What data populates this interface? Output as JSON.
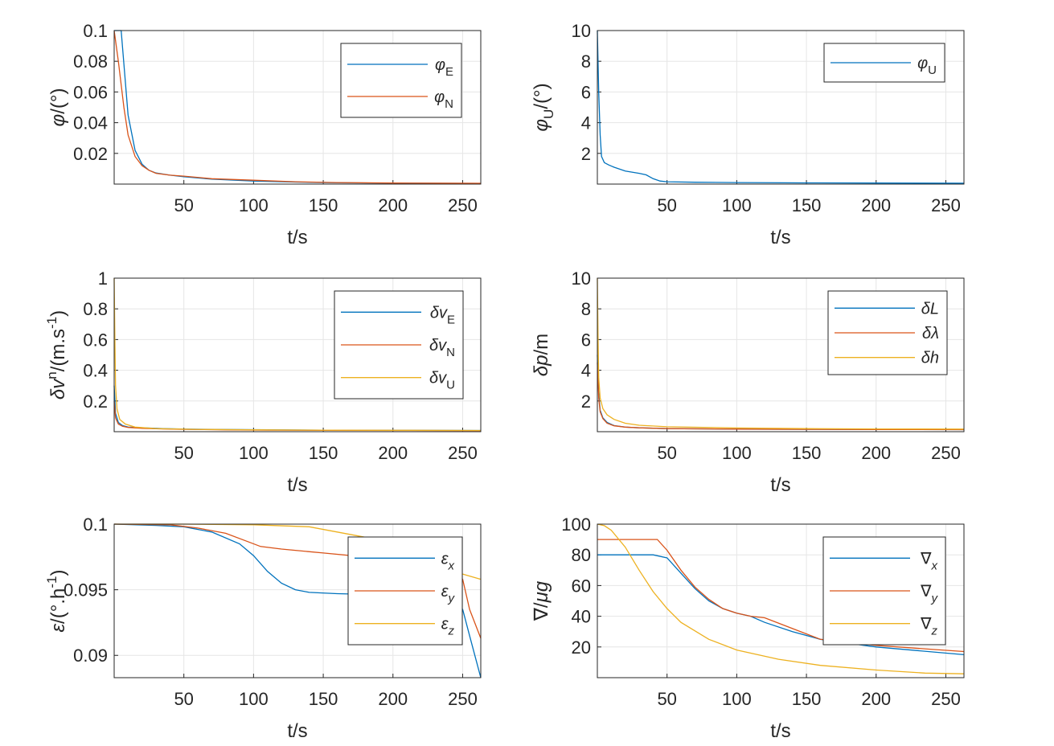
{
  "colors": {
    "blue": "#0072BD",
    "orange": "#D95319",
    "yellow": "#EDB120",
    "axis": "#262626",
    "grid": "#e6e6e6"
  },
  "chart_data": [
    {
      "id": "phiEN",
      "type": "line",
      "ylabel": "φ/(°)",
      "xlabel": "t/s",
      "xlim": [
        0,
        263
      ],
      "ylim": [
        0,
        0.1
      ],
      "xticks": [
        "50",
        "100",
        "150",
        "200",
        "250"
      ],
      "yticks": [
        "0.02",
        "0.04",
        "0.06",
        "0.08",
        "0.1"
      ],
      "legend_position": "top-right",
      "series": [
        {
          "name": "φE",
          "sym": "φ",
          "sub": "E",
          "color": "#0072BD",
          "x": [
            0,
            5,
            10,
            15,
            20,
            25,
            30,
            40,
            50,
            70,
            100,
            130,
            160,
            200,
            263
          ],
          "y": [
            0.1,
            0.1,
            0.045,
            0.022,
            0.013,
            0.009,
            0.0072,
            0.0058,
            0.0048,
            0.0032,
            0.002,
            0.0013,
            0.0009,
            0.0006,
            0.0004
          ]
        },
        {
          "name": "φN",
          "sym": "φ",
          "sub": "N",
          "color": "#D95319",
          "x": [
            0,
            3,
            7,
            10,
            15,
            20,
            25,
            30,
            40,
            50,
            70,
            100,
            130,
            160,
            200,
            263
          ],
          "y": [
            0.1,
            0.08,
            0.05,
            0.032,
            0.018,
            0.012,
            0.009,
            0.007,
            0.0058,
            0.0052,
            0.0035,
            0.0025,
            0.0015,
            0.001,
            0.0007,
            0.0005
          ]
        }
      ]
    },
    {
      "id": "phiU",
      "type": "line",
      "ylabel": "φU/(°)",
      "xlabel": "t/s",
      "xlim": [
        0,
        263
      ],
      "ylim": [
        0,
        10
      ],
      "xticks": [
        "50",
        "100",
        "150",
        "200",
        "250"
      ],
      "yticks": [
        "2",
        "4",
        "6",
        "8",
        "10"
      ],
      "legend_position": "top-right",
      "series": [
        {
          "name": "φU",
          "sym": "φ",
          "sub": "U",
          "color": "#0072BD",
          "x": [
            0,
            1,
            2,
            3,
            5,
            8,
            12,
            20,
            30,
            35,
            40,
            45,
            50,
            70,
            100,
            150,
            200,
            263
          ],
          "y": [
            10,
            6,
            3.2,
            1.8,
            1.4,
            1.25,
            1.1,
            0.85,
            0.7,
            0.6,
            0.35,
            0.2,
            0.15,
            0.12,
            0.1,
            0.08,
            0.07,
            0.06
          ]
        }
      ]
    },
    {
      "id": "dv",
      "type": "line",
      "ylabel": "δvn/(m.s-1)",
      "xlabel": "t/s",
      "xlim": [
        0,
        263
      ],
      "ylim": [
        0,
        1
      ],
      "xticks": [
        "50",
        "100",
        "150",
        "200",
        "250"
      ],
      "yticks": [
        "0.2",
        "0.4",
        "0.6",
        "0.8",
        "1"
      ],
      "legend_position": "top-right",
      "series": [
        {
          "name": "δvE",
          "sym": "δv",
          "sub": "E",
          "color": "#0072BD",
          "x": [
            0,
            1,
            3,
            6,
            10,
            20,
            35,
            50,
            80,
            110,
            150,
            200,
            263
          ],
          "y": [
            0.3,
            0.12,
            0.06,
            0.04,
            0.03,
            0.025,
            0.02,
            0.017,
            0.014,
            0.012,
            0.01,
            0.009,
            0.008
          ]
        },
        {
          "name": "δvN",
          "sym": "δv",
          "sub": "N",
          "color": "#D95319",
          "x": [
            0,
            1,
            3,
            6,
            10,
            20,
            35,
            50,
            80,
            110,
            150,
            200,
            263
          ],
          "y": [
            0.2,
            0.09,
            0.05,
            0.035,
            0.028,
            0.022,
            0.018,
            0.015,
            0.012,
            0.01,
            0.009,
            0.008,
            0.007
          ]
        },
        {
          "name": "δvU",
          "sym": "δv",
          "sub": "U",
          "color": "#EDB120",
          "x": [
            0,
            0.5,
            1,
            2,
            4,
            8,
            15,
            30,
            60,
            100,
            150,
            200,
            263
          ],
          "y": [
            1.0,
            0.6,
            0.3,
            0.15,
            0.08,
            0.05,
            0.03,
            0.02,
            0.015,
            0.012,
            0.01,
            0.009,
            0.008
          ]
        }
      ]
    },
    {
      "id": "dp",
      "type": "line",
      "ylabel": "δp/m",
      "xlabel": "t/s",
      "xlim": [
        0,
        263
      ],
      "ylim": [
        0,
        10
      ],
      "xticks": [
        "50",
        "100",
        "150",
        "200",
        "250"
      ],
      "yticks": [
        "2",
        "4",
        "6",
        "8",
        "10"
      ],
      "legend_position": "top-right",
      "series": [
        {
          "name": "δL",
          "sym": "δL",
          "sub": "",
          "color": "#0072BD",
          "x": [
            0,
            1,
            2,
            4,
            7,
            12,
            20,
            30,
            50,
            100,
            150,
            200,
            263
          ],
          "y": [
            5,
            2.5,
            1.4,
            0.9,
            0.6,
            0.4,
            0.3,
            0.25,
            0.2,
            0.17,
            0.15,
            0.14,
            0.13
          ]
        },
        {
          "name": "δλ",
          "sym": "δλ",
          "sub": "",
          "color": "#D95319",
          "x": [
            0,
            1,
            2,
            4,
            7,
            12,
            20,
            30,
            50,
            100,
            150,
            200,
            263
          ],
          "y": [
            4.5,
            2.2,
            1.3,
            0.85,
            0.55,
            0.38,
            0.3,
            0.25,
            0.2,
            0.17,
            0.15,
            0.14,
            0.13
          ]
        },
        {
          "name": "δh",
          "sym": "δh",
          "sub": "",
          "color": "#EDB120",
          "x": [
            0,
            0.5,
            1,
            2,
            4,
            7,
            12,
            20,
            30,
            50,
            100,
            150,
            200,
            263
          ],
          "y": [
            10,
            6,
            3.5,
            2.2,
            1.5,
            1.1,
            0.8,
            0.55,
            0.42,
            0.32,
            0.24,
            0.2,
            0.18,
            0.17
          ]
        }
      ]
    },
    {
      "id": "eps",
      "type": "line",
      "ylabel": "ε/(°.h-1)",
      "xlabel": "t/s",
      "xlim": [
        0,
        263
      ],
      "ylim": [
        0.0883,
        0.1
      ],
      "xticks": [
        "50",
        "100",
        "150",
        "200",
        "250"
      ],
      "yticks": [
        "0.09",
        "0.095",
        "0.1"
      ],
      "ytick_values": [
        0.09,
        0.095,
        0.1
      ],
      "legend_position": "top-right",
      "series": [
        {
          "name": "εx",
          "sym": "ε",
          "sub": "x",
          "color": "#0072BD",
          "x": [
            0,
            30,
            50,
            70,
            90,
            100,
            110,
            120,
            130,
            140,
            160,
            200,
            240,
            250,
            255,
            260,
            263
          ],
          "y": [
            0.1,
            0.0999,
            0.0998,
            0.0994,
            0.0985,
            0.0976,
            0.0964,
            0.0955,
            0.095,
            0.0948,
            0.0947,
            0.0946,
            0.0945,
            0.0935,
            0.0915,
            0.0895,
            0.0883
          ]
        },
        {
          "name": "εy",
          "sym": "ε",
          "sub": "y",
          "color": "#D95319",
          "x": [
            0,
            40,
            60,
            80,
            95,
            105,
            120,
            150,
            180,
            210,
            240,
            250,
            255,
            263
          ],
          "y": [
            0.1,
            0.09995,
            0.0997,
            0.0993,
            0.0987,
            0.0983,
            0.0981,
            0.0978,
            0.0975,
            0.0972,
            0.0966,
            0.0958,
            0.0935,
            0.0913
          ]
        },
        {
          "name": "εz",
          "sym": "ε",
          "sub": "z",
          "color": "#EDB120",
          "x": [
            0,
            50,
            100,
            140,
            160,
            180,
            200,
            220,
            240,
            263
          ],
          "y": [
            0.1,
            0.1,
            0.09995,
            0.0998,
            0.0994,
            0.099,
            0.0983,
            0.0973,
            0.0965,
            0.0958
          ]
        }
      ]
    },
    {
      "id": "nabla",
      "type": "line",
      "ylabel": "∇/μg",
      "xlabel": "t/s",
      "xlim": [
        0,
        263
      ],
      "ylim": [
        0,
        100
      ],
      "xticks": [
        "50",
        "100",
        "150",
        "200",
        "250"
      ],
      "yticks": [
        "20",
        "40",
        "60",
        "80",
        "100"
      ],
      "legend_position": "top-right",
      "series": [
        {
          "name": "∇x",
          "sym": "∇",
          "sub": "x",
          "color": "#0072BD",
          "x": [
            0,
            40,
            50,
            60,
            70,
            80,
            90,
            100,
            110,
            120,
            140,
            160,
            200,
            263
          ],
          "y": [
            80,
            80,
            78,
            68,
            58,
            50,
            45,
            42,
            40,
            36,
            30,
            25,
            20,
            15
          ]
        },
        {
          "name": "∇y",
          "sym": "∇",
          "sub": "y",
          "color": "#D95319",
          "x": [
            0,
            43,
            50,
            60,
            70,
            80,
            90,
            100,
            110,
            120,
            140,
            160,
            200,
            263
          ],
          "y": [
            90,
            90,
            83,
            70,
            59,
            51,
            45,
            42,
            40,
            39,
            32,
            25,
            21,
            17
          ]
        },
        {
          "name": "∇z",
          "sym": "∇",
          "sub": "z",
          "color": "#EDB120",
          "x": [
            0,
            5,
            10,
            20,
            30,
            40,
            50,
            60,
            80,
            100,
            130,
            160,
            200,
            235,
            263
          ],
          "y": [
            100,
            99,
            96,
            85,
            70,
            56,
            45,
            36,
            25,
            18,
            12,
            8,
            5,
            3,
            2.5
          ]
        }
      ]
    }
  ]
}
